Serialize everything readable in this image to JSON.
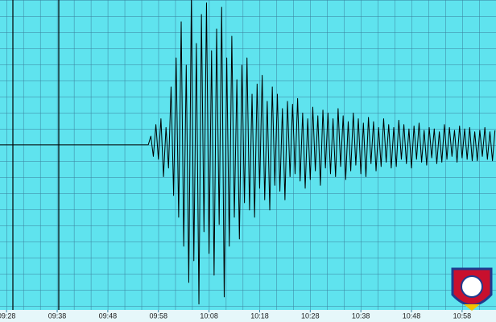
{
  "chart_data": {
    "type": "line",
    "x": [
      -1.3,
      28,
      28.5,
      29,
      29.5,
      30,
      30.5,
      31,
      31.5,
      32,
      32.5,
      33,
      33.5,
      34,
      34.5,
      35,
      35.5,
      36,
      36.5,
      37,
      37.5,
      38,
      38.5,
      39,
      39.5,
      40,
      40.5,
      41,
      41.5,
      42,
      42.5,
      43,
      43.5,
      44,
      44.5,
      45,
      45.5,
      46,
      46.5,
      47,
      47.5,
      48,
      48.5,
      49,
      49.5,
      50,
      50.5,
      51,
      51.5,
      52,
      52.5,
      53,
      53.5,
      54,
      54.5,
      55,
      55.5,
      56,
      56.5,
      57,
      57.5,
      58,
      58.5,
      59,
      59.5,
      60,
      60.5,
      61,
      61.5,
      62,
      62.5,
      63,
      63.5,
      64,
      64.5,
      65,
      65.5,
      66,
      66.5,
      67,
      67.5,
      68,
      68.5,
      69,
      69.5,
      70,
      70.5,
      71,
      71.5,
      72,
      72.5,
      73,
      73.5,
      74,
      74.5,
      75,
      75.5,
      76,
      76.5,
      77,
      77.5,
      78,
      78.5,
      79,
      79.5,
      80,
      80.5,
      81,
      81.5,
      82,
      82.5,
      83,
      83.5,
      84,
      84.5,
      85,
      85.5,
      86,
      86.5,
      87,
      87.5,
      88,
      88.5,
      89,
      89.5,
      90,
      90.5,
      91,
      91.5,
      92,
      92.5,
      93,
      93.5,
      94,
      94.5,
      95,
      95.5,
      96,
      96.5
    ],
    "values": [
      0,
      0,
      6,
      -8,
      14,
      -10,
      18,
      -22,
      12,
      -16,
      40,
      -35,
      60,
      -50,
      85,
      -70,
      55,
      -95,
      100,
      -80,
      70,
      -110,
      90,
      -60,
      98,
      -75,
      65,
      -90,
      80,
      -55,
      95,
      -105,
      60,
      -70,
      75,
      -50,
      45,
      -65,
      55,
      -40,
      60,
      -45,
      35,
      -50,
      42,
      -30,
      48,
      -38,
      30,
      -45,
      40,
      -28,
      35,
      -32,
      25,
      -38,
      30,
      -22,
      28,
      -20,
      32,
      -25,
      22,
      -30,
      18,
      -24,
      26,
      -18,
      20,
      -28,
      24,
      -16,
      22,
      -20,
      18,
      -22,
      25,
      -15,
      20,
      -24,
      16,
      -18,
      22,
      -14,
      18,
      -20,
      15,
      -22,
      19,
      -13,
      16,
      -18,
      12,
      -15,
      18,
      -12,
      14,
      -16,
      12,
      -15,
      17,
      -10,
      14,
      -13,
      11,
      -16,
      13,
      -10,
      15,
      -12,
      10,
      -14,
      12,
      -9,
      11,
      -13,
      9,
      -12,
      14,
      -10,
      12,
      -8,
      10,
      -12,
      13,
      -9,
      11,
      -10,
      12,
      -11,
      9,
      -11,
      10,
      -8,
      12,
      -10,
      9,
      -11,
      10
    ],
    "color": "#000000",
    "xlim": [
      -1.3,
      96.7
    ],
    "ylim": [
      -114,
      100
    ],
    "xticks": [
      {
        "value": 0,
        "label": "09:28"
      },
      {
        "value": 10,
        "label": "09:38"
      },
      {
        "value": 20,
        "label": "09:48"
      },
      {
        "value": 30,
        "label": "09:58"
      },
      {
        "value": 40,
        "label": "10:08"
      },
      {
        "value": 50,
        "label": "10:18"
      },
      {
        "value": 60,
        "label": "10:28"
      },
      {
        "value": 70,
        "label": "10:38"
      },
      {
        "value": 80,
        "label": "10:48"
      },
      {
        "value": 90,
        "label": "10:58"
      }
    ],
    "grid": true
  }
}
